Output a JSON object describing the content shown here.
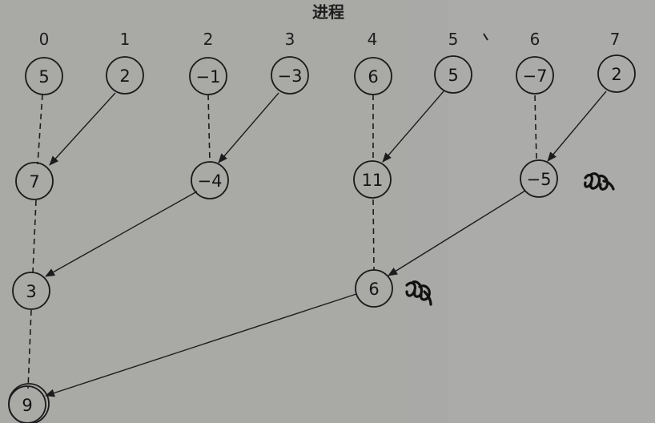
{
  "title": "进程",
  "columns": [
    "0",
    "1",
    "2",
    "3",
    "4",
    "5",
    "6",
    "7"
  ],
  "rows": [
    [
      "5",
      "2",
      "−1",
      "−3",
      "6",
      "5",
      "−7",
      "2"
    ],
    [
      "7",
      "−4",
      "11",
      "−5"
    ],
    [
      "3",
      "6"
    ],
    [
      "9"
    ]
  ],
  "colors": {
    "background": "#a9a9a7",
    "ink": "#1b1b1b"
  }
}
